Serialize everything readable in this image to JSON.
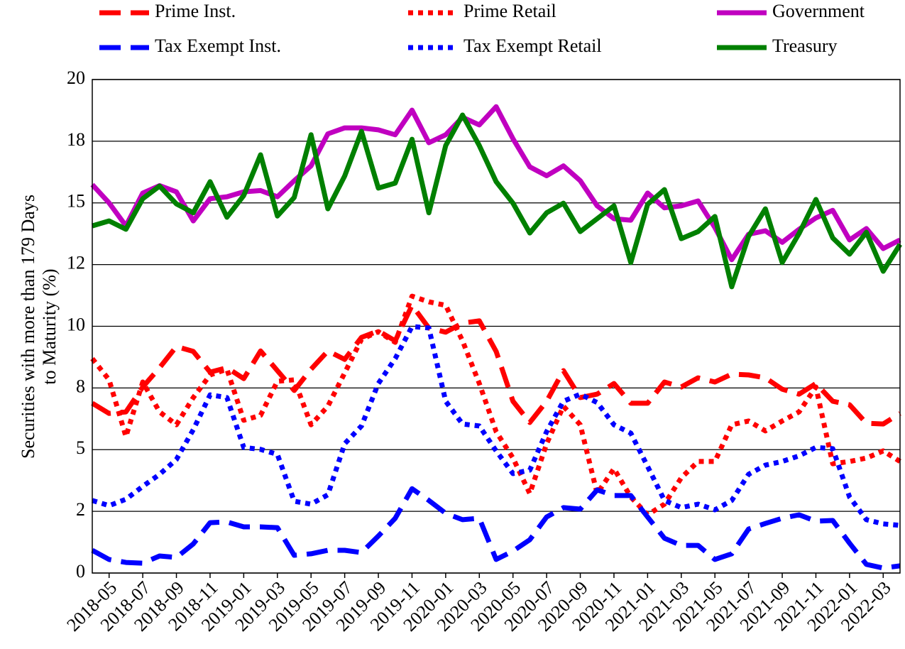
{
  "chart_data": {
    "type": "line",
    "ylabel": [
      "Securities with more than 179 Days",
      "to Maturity (%)"
    ],
    "categories": [
      null,
      "2018-05",
      null,
      "2018-07",
      null,
      "2018-09",
      null,
      "2018-11",
      null,
      "2019-01",
      null,
      "2019-03",
      null,
      "2019-05",
      null,
      "2019-07",
      null,
      "2019-09",
      null,
      "2019-11",
      null,
      "2020-01",
      null,
      "2020-03",
      null,
      "2020-05",
      null,
      "2020-07",
      null,
      "2020-09",
      null,
      "2020-11",
      null,
      "2021-01",
      null,
      "2021-03",
      null,
      "2021-05",
      null,
      "2021-07",
      null,
      "2021-09",
      null,
      "2021-11",
      null,
      "2022-01",
      null,
      "2022-03",
      null
    ],
    "ylim": [
      0,
      20
    ],
    "yticks": [
      0,
      {
        "value": 2.5,
        "label": "2"
      },
      5,
      {
        "value": 7.5,
        "label": "8"
      },
      10,
      {
        "value": 12.5,
        "label": "12"
      },
      15,
      {
        "value": 17.5,
        "label": "18"
      },
      20
    ],
    "grid": true,
    "series": [
      {
        "name": "Prime Inst.",
        "color": "#ff0000",
        "dash": "dashed",
        "values": [
          6.88,
          6.47,
          6.53,
          7.54,
          8.32,
          9.18,
          8.98,
          8.14,
          8.32,
          7.88,
          9.0,
          8.2,
          7.4,
          8.26,
          9.0,
          8.66,
          9.55,
          9.81,
          9.41,
          10.85,
          9.93,
          9.76,
          10.13,
          10.22,
          8.98,
          6.96,
          6.1,
          6.96,
          8.2,
          7.11,
          7.25,
          7.68,
          6.88,
          6.88,
          7.74,
          7.54,
          7.91,
          7.74,
          8.06,
          8.03,
          7.91,
          7.45,
          7.25,
          7.68,
          6.96,
          6.82,
          6.07,
          6.04,
          6.47
        ]
      },
      {
        "name": "Prime Retail",
        "color": "#ff0000",
        "dash": "dotted",
        "values": [
          8.69,
          7.83,
          5.53,
          7.74,
          6.53,
          6.01,
          7.11,
          8.03,
          8.26,
          6.19,
          6.39,
          7.77,
          7.83,
          6.01,
          6.76,
          8.11,
          9.47,
          9.78,
          9.35,
          11.22,
          10.99,
          10.85,
          9.41,
          7.68,
          5.73,
          4.66,
          3.22,
          5.24,
          6.76,
          6.01,
          3.22,
          4.23,
          3.08,
          2.36,
          2.79,
          3.86,
          4.52,
          4.52,
          6.01,
          6.16,
          5.76,
          6.16,
          6.53,
          7.54,
          4.43,
          4.52,
          4.66,
          4.95,
          4.52
        ]
      },
      {
        "name": "Government",
        "color": "#c000c0",
        "dash": "solid",
        "values": [
          15.74,
          15.0,
          14.07,
          15.4,
          15.7,
          15.45,
          14.27,
          15.17,
          15.25,
          15.45,
          15.5,
          15.25,
          15.9,
          16.5,
          17.8,
          18.04,
          18.04,
          17.96,
          17.76,
          18.76,
          17.44,
          17.76,
          18.47,
          18.16,
          18.9,
          17.6,
          16.46,
          16.1,
          16.5,
          15.9,
          14.88,
          14.36,
          14.3,
          15.4,
          14.8,
          14.88,
          15.08,
          14.0,
          12.7,
          13.73,
          13.87,
          13.4,
          13.93,
          14.39,
          14.7,
          13.5,
          13.96,
          13.15,
          13.5
        ]
      },
      {
        "name": "Tax Exempt Inst.",
        "color": "#0000ff",
        "dash": "dashed",
        "values": [
          0.92,
          0.55,
          0.43,
          0.4,
          0.69,
          0.63,
          1.18,
          2.04,
          2.07,
          1.87,
          1.87,
          1.84,
          0.72,
          0.78,
          0.92,
          0.92,
          0.83,
          1.5,
          2.22,
          3.42,
          2.94,
          2.42,
          2.16,
          2.22,
          0.55,
          0.89,
          1.35,
          2.27,
          2.65,
          2.59,
          3.37,
          3.14,
          3.14,
          2.27,
          1.41,
          1.12,
          1.12,
          0.55,
          0.78,
          1.78,
          2.01,
          2.22,
          2.36,
          2.1,
          2.13,
          1.21,
          0.35,
          0.2,
          0.29
        ]
      },
      {
        "name": "Tax Exempt Retail",
        "color": "#0000ff",
        "dash": "dotted",
        "values": [
          2.94,
          2.73,
          2.99,
          3.51,
          4.0,
          4.6,
          5.81,
          7.22,
          7.11,
          5.09,
          5.01,
          4.81,
          2.91,
          2.79,
          3.17,
          5.24,
          5.96,
          7.68,
          8.69,
          9.99,
          9.93,
          6.96,
          6.04,
          5.96,
          4.95,
          4.03,
          4.17,
          5.73,
          6.96,
          7.25,
          6.91,
          6.01,
          5.67,
          4.32,
          2.94,
          2.65,
          2.79,
          2.56,
          2.94,
          4.0,
          4.37,
          4.52,
          4.75,
          5.09,
          5.04,
          3.08,
          2.16,
          1.99,
          1.93
        ]
      },
      {
        "name": "Treasury",
        "color": "#008000",
        "dash": "solid",
        "values": [
          14.07,
          14.27,
          13.93,
          15.17,
          15.68,
          14.96,
          14.6,
          15.86,
          14.42,
          15.3,
          16.95,
          14.47,
          15.22,
          17.76,
          14.76,
          16.09,
          17.9,
          15.6,
          15.8,
          17.58,
          14.6,
          17.32,
          18.56,
          17.32,
          15.86,
          14.99,
          13.78,
          14.6,
          14.99,
          13.84,
          14.36,
          14.88,
          12.58,
          14.94,
          15.54,
          13.55,
          13.84,
          14.45,
          11.6,
          13.64,
          14.76,
          12.58,
          13.76,
          15.14,
          13.58,
          12.92,
          13.81,
          12.23,
          13.32
        ]
      }
    ]
  }
}
